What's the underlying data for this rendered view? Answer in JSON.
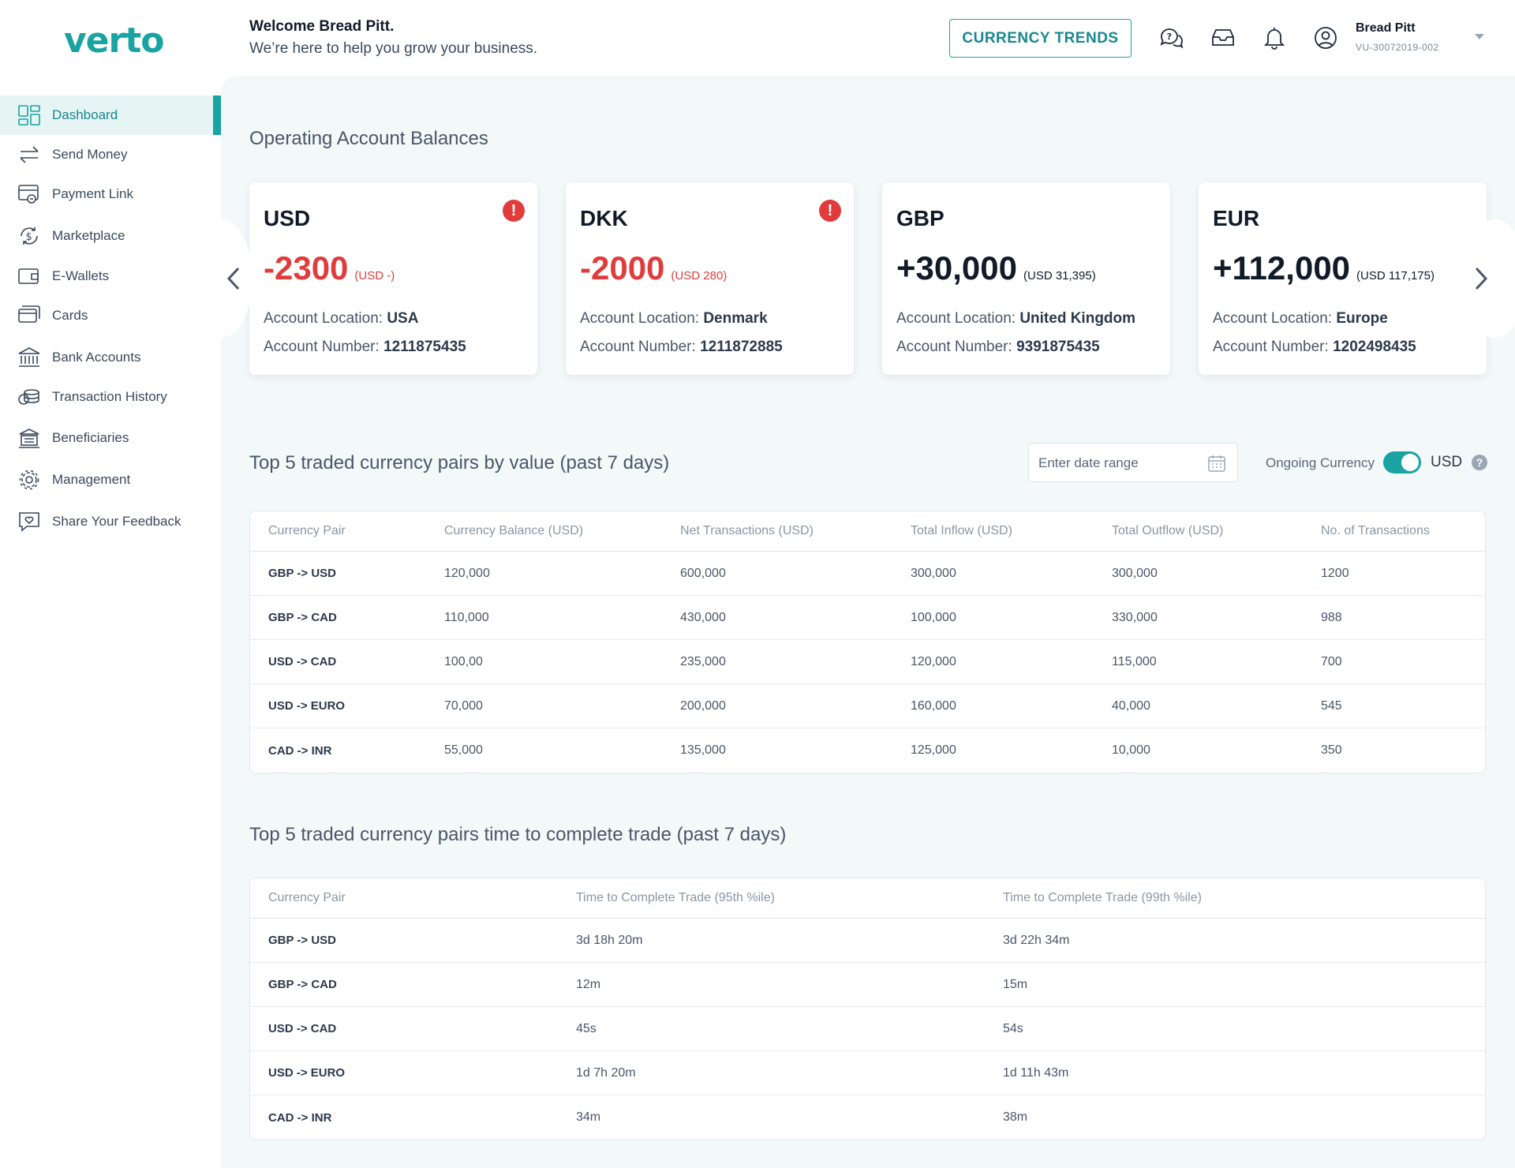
{
  "brand": {
    "logo_text": "verto",
    "accent": "#1aa3a3"
  },
  "header": {
    "welcome_title": "Welcome Bread Pitt.",
    "welcome_subtitle": "We’re here to help you grow your business.",
    "trends_button": "CURRENCY TRENDS",
    "icons": [
      "help-chat-icon",
      "inbox-icon",
      "bell-icon",
      "user-circle-icon"
    ],
    "user_name": "Bread Pitt",
    "user_id": "VU-30072019-002"
  },
  "sidebar": {
    "items": [
      {
        "label": "Dashboard",
        "icon": "dashboard-icon",
        "active": true
      },
      {
        "label": "Send Money",
        "icon": "transfer-arrows-icon"
      },
      {
        "label": "Payment Link",
        "icon": "payment-link-icon"
      },
      {
        "label": "Marketplace",
        "icon": "dollar-cycle-icon"
      },
      {
        "label": "E-Wallets",
        "icon": "wallet-icon"
      },
      {
        "label": "Cards",
        "icon": "cards-icon"
      },
      {
        "label": "Bank Accounts",
        "icon": "bank-icon"
      },
      {
        "label": "Transaction History",
        "icon": "coins-icon"
      },
      {
        "label": "Beneficiaries",
        "icon": "beneficiary-bank-icon"
      },
      {
        "label": "Management",
        "icon": "gear-icon"
      },
      {
        "label": "Share Your Feedback",
        "icon": "feedback-heart-icon"
      }
    ]
  },
  "balances": {
    "title": "Operating Account Balances",
    "location_label": "Account Location:",
    "number_label": "Account Number:",
    "cards": [
      {
        "currency": "USD",
        "amount": "-2300",
        "usd": "(USD -)",
        "location": "USA",
        "number": "1211875435",
        "alert": true,
        "negative": true
      },
      {
        "currency": "DKK",
        "amount": "-2000",
        "usd": "(USD 280)",
        "location": "Denmark",
        "number": "1211872885",
        "alert": true,
        "negative": true
      },
      {
        "currency": "GBP",
        "amount": "+30,000",
        "usd": "(USD 31,395)",
        "location": "United Kingdom",
        "number": "9391875435",
        "alert": false,
        "negative": false
      },
      {
        "currency": "EUR",
        "amount": "+112,000",
        "usd": "(USD 117,175)",
        "location": "Europe",
        "number": "1202498435",
        "alert": false,
        "negative": false
      }
    ],
    "alert_glyph": "!"
  },
  "pairs_value": {
    "title": "Top 5 traded currency pairs by value (past 7 days)",
    "date_placeholder": "Enter date range",
    "toggle_label": "Ongoing Currency",
    "toggle_on": true,
    "toggle_value": "USD",
    "help_glyph": "?",
    "columns": [
      "Currency Pair",
      "Currency Balance (USD)",
      "Net Transactions (USD)",
      "Total Inflow (USD)",
      "Total Outflow (USD)",
      "No. of Transactions"
    ],
    "rows": [
      [
        "GBP -> USD",
        "120,000",
        "600,000",
        "300,000",
        "300,000",
        "1200"
      ],
      [
        "GBP -> CAD",
        "110,000",
        "430,000",
        "100,000",
        "330,000",
        "988"
      ],
      [
        "USD -> CAD",
        "100,00",
        "235,000",
        "120,000",
        "115,000",
        "700"
      ],
      [
        "USD -> EURO",
        "70,000",
        "200,000",
        "160,000",
        "40,000",
        "545"
      ],
      [
        "CAD -> INR",
        "55,000",
        "135,000",
        "125,000",
        "10,000",
        "350"
      ]
    ]
  },
  "pairs_time": {
    "title": "Top 5 traded currency pairs time to complete trade (past 7 days)",
    "columns": [
      "Currency Pair",
      "Time to Complete Trade (95th %ile)",
      "Time to Complete Trade (99th %ile)"
    ],
    "rows": [
      [
        "GBP -> USD",
        "3d 18h 20m",
        "3d 22h 34m"
      ],
      [
        "GBP -> CAD",
        "12m",
        "15m"
      ],
      [
        "USD -> CAD",
        "45s",
        "54s"
      ],
      [
        "USD -> EURO",
        "1d 7h 20m",
        "1d 11h 43m"
      ],
      [
        "CAD -> INR",
        "34m",
        "38m"
      ]
    ]
  }
}
